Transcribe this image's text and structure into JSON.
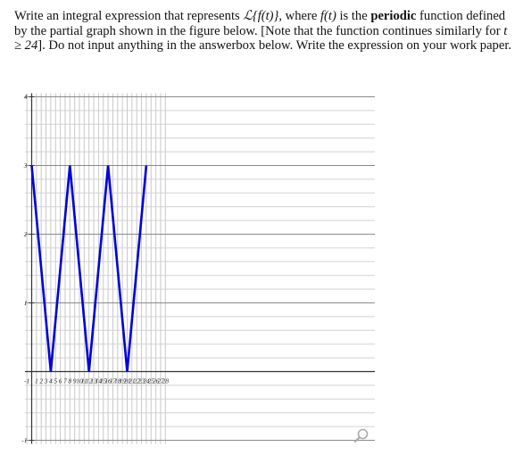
{
  "question": {
    "p1": "Write an integral expression that represents ",
    "laplace": "ℒ{f(t)}",
    "p2": ", where ",
    "ft": "f(t)",
    "p3": " is the ",
    "bold": "periodic",
    "p4": " function defined by the partial graph shown in the figure below. [Note that the function continues similarly for ",
    "cond": "t ≥ 24",
    "p5": "]. Do not input anything in the answerbox below. Write the expression on your work paper."
  },
  "chart_data": {
    "type": "line",
    "x_ticks": [
      "-1",
      "1",
      "2",
      "3",
      "4",
      "5",
      "6",
      "7",
      "8",
      "9",
      "10",
      "11",
      "12",
      "13",
      "14",
      "15",
      "16",
      "17",
      "18",
      "19",
      "20",
      "21",
      "22",
      "23",
      "24",
      "25",
      "26",
      "27",
      "28"
    ],
    "y_ticks": [
      "4",
      "3",
      "2",
      "1",
      "-1"
    ],
    "xlim": [
      -1,
      28.5
    ],
    "ylim": [
      -1,
      4
    ],
    "grid": true,
    "line_color": "#0000dd",
    "series": [
      {
        "x": [
          0,
          4,
          8,
          12,
          16,
          20,
          24
        ],
        "y": [
          3,
          0,
          3,
          0,
          3,
          0,
          3
        ]
      }
    ]
  },
  "icons": {
    "zoom": "magnifier-icon"
  }
}
